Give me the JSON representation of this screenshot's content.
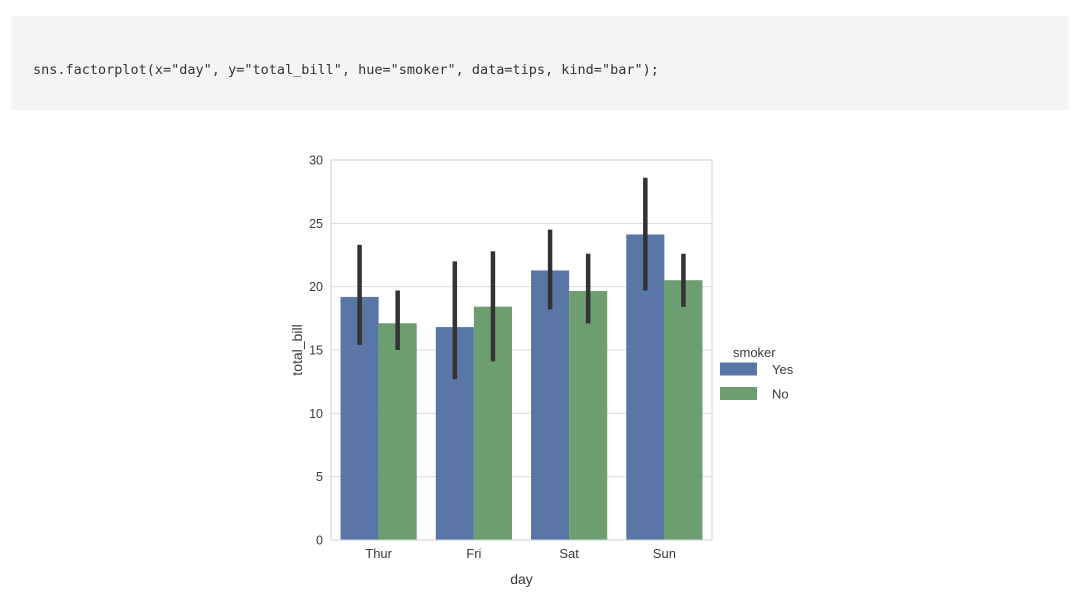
{
  "page": {
    "background": "#ffffff"
  },
  "code_cell": {
    "source": "sns.factorplot(x=\"day\", y=\"total_bill\", hue=\"smoker\", data=tips, kind=\"bar\");",
    "background": "#f5f5f5"
  },
  "chart_data": {
    "type": "bar",
    "title": "",
    "xlabel": "day",
    "ylabel": "total_bill",
    "categories": [
      "Thur",
      "Fri",
      "Sat",
      "Sun"
    ],
    "series": [
      {
        "name": "Yes",
        "color": "#5a76a7",
        "values": [
          19.19,
          16.81,
          21.28,
          24.12
        ],
        "ci_low": [
          15.4,
          12.7,
          18.2,
          19.7
        ],
        "ci_high": [
          23.3,
          22.0,
          24.5,
          28.6
        ]
      },
      {
        "name": "No",
        "color": "#6d9e70",
        "values": [
          17.11,
          18.42,
          19.66,
          20.51
        ],
        "ci_low": [
          15.0,
          14.1,
          17.1,
          18.4
        ],
        "ci_high": [
          19.7,
          22.8,
          22.6,
          22.6
        ]
      }
    ],
    "legend": {
      "title": "smoker",
      "entries": [
        "Yes",
        "No"
      ],
      "position": "right-of-plot"
    },
    "ylim": [
      0,
      30
    ],
    "yticks": [
      0,
      5,
      10,
      15,
      20,
      25,
      30
    ],
    "grid": true,
    "error_bar_color": "#333333",
    "grid_color": "#dcdcdc",
    "border_color": "#d0d0d0",
    "text_color": "#3a3a3a",
    "plot_background": "#ffffff"
  }
}
